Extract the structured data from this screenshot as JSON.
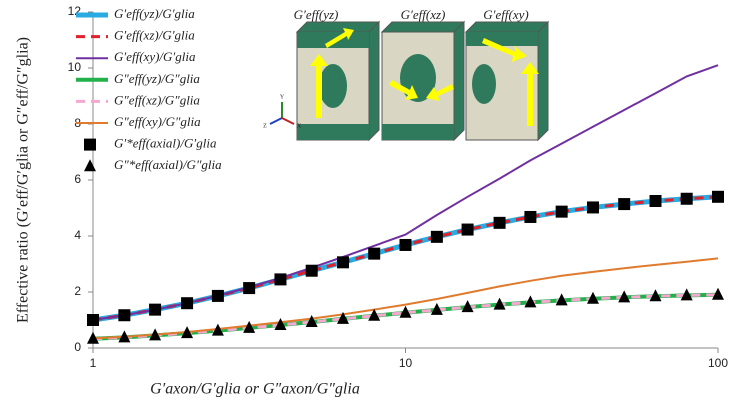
{
  "chart_data": {
    "type": "line",
    "xlabel": "G′axon/G′glia or G″axon/G″glia",
    "ylabel": "Effective ratio (G′eff/G′glia or G″eff/G″glia)",
    "x": [
      1,
      1.26,
      1.58,
      2,
      2.51,
      3.16,
      3.98,
      5.01,
      6.31,
      7.94,
      10,
      12.6,
      15.8,
      20,
      25.1,
      31.6,
      39.8,
      50.1,
      63.1,
      79.4,
      100
    ],
    "xlim": [
      1,
      100
    ],
    "xticks": [
      1,
      10,
      100
    ],
    "xscale": "log",
    "ylim": [
      0,
      12
    ],
    "yticks": [
      0,
      2,
      4,
      6,
      8,
      10,
      12
    ],
    "grid": false,
    "series": [
      {
        "name": "G′eff(yz)/G′glia",
        "color": "#29abe2",
        "style": "solid",
        "width": 5,
        "values": [
          1.0,
          1.17,
          1.37,
          1.6,
          1.86,
          2.14,
          2.45,
          2.76,
          3.06,
          3.37,
          3.68,
          3.97,
          4.23,
          4.47,
          4.68,
          4.87,
          5.02,
          5.14,
          5.25,
          5.33,
          5.4
        ]
      },
      {
        "name": "G′eff(xz)/G′glia",
        "color": "#e0202a",
        "style": "dashed",
        "width": 3,
        "values": [
          1.0,
          1.17,
          1.37,
          1.6,
          1.86,
          2.14,
          2.45,
          2.76,
          3.06,
          3.37,
          3.68,
          3.97,
          4.23,
          4.47,
          4.68,
          4.87,
          5.02,
          5.14,
          5.25,
          5.33,
          5.4
        ]
      },
      {
        "name": "G′eff(xy)/G′glia",
        "color": "#7030a0",
        "style": "solid",
        "width": 2,
        "values": [
          1.0,
          1.17,
          1.37,
          1.6,
          1.87,
          2.17,
          2.5,
          2.87,
          3.25,
          3.65,
          4.05,
          4.75,
          5.4,
          6.05,
          6.7,
          7.3,
          7.9,
          8.5,
          9.1,
          9.7,
          10.1
        ]
      },
      {
        "name": "G″eff(yz)/G″glia",
        "color": "#22b04b",
        "style": "solid",
        "width": 4,
        "values": [
          0.33,
          0.38,
          0.45,
          0.53,
          0.62,
          0.72,
          0.82,
          0.93,
          1.04,
          1.15,
          1.26,
          1.36,
          1.46,
          1.55,
          1.63,
          1.7,
          1.76,
          1.81,
          1.85,
          1.88,
          1.9
        ]
      },
      {
        "name": "G″eff(xz)/G″glia",
        "color": "#f7a8d0",
        "style": "dashed",
        "width": 3,
        "values": [
          0.33,
          0.38,
          0.45,
          0.53,
          0.62,
          0.72,
          0.82,
          0.93,
          1.04,
          1.15,
          1.26,
          1.36,
          1.46,
          1.55,
          1.63,
          1.7,
          1.76,
          1.81,
          1.85,
          1.88,
          1.9
        ]
      },
      {
        "name": "G″eff(xy)/G″glia",
        "color": "#e07b2e",
        "style": "solid",
        "width": 2,
        "values": [
          0.35,
          0.4,
          0.48,
          0.57,
          0.68,
          0.8,
          0.92,
          1.05,
          1.2,
          1.37,
          1.55,
          1.75,
          1.97,
          2.2,
          2.4,
          2.58,
          2.72,
          2.85,
          2.97,
          3.08,
          3.2
        ]
      },
      {
        "name": "G′*eff(axial)/G′glia",
        "color": "#000000",
        "marker": "square",
        "values": [
          1.0,
          1.17,
          1.37,
          1.6,
          1.86,
          2.14,
          2.45,
          2.76,
          3.06,
          3.37,
          3.68,
          3.97,
          4.23,
          4.47,
          4.68,
          4.87,
          5.02,
          5.14,
          5.25,
          5.33,
          5.4
        ]
      },
      {
        "name": "G″*eff(axial)/G″glia",
        "color": "#000000",
        "marker": "triangle",
        "values": [
          0.33,
          0.38,
          0.45,
          0.53,
          0.62,
          0.72,
          0.82,
          0.93,
          1.04,
          1.15,
          1.26,
          1.36,
          1.46,
          1.55,
          1.63,
          1.7,
          1.76,
          1.81,
          1.85,
          1.88,
          1.9
        ]
      }
    ],
    "inset_labels": [
      "G′eff(yz)",
      "G′eff(xz)",
      "G′eff(xy)"
    ],
    "inset_axes": [
      "Y",
      "Z",
      "X"
    ]
  }
}
